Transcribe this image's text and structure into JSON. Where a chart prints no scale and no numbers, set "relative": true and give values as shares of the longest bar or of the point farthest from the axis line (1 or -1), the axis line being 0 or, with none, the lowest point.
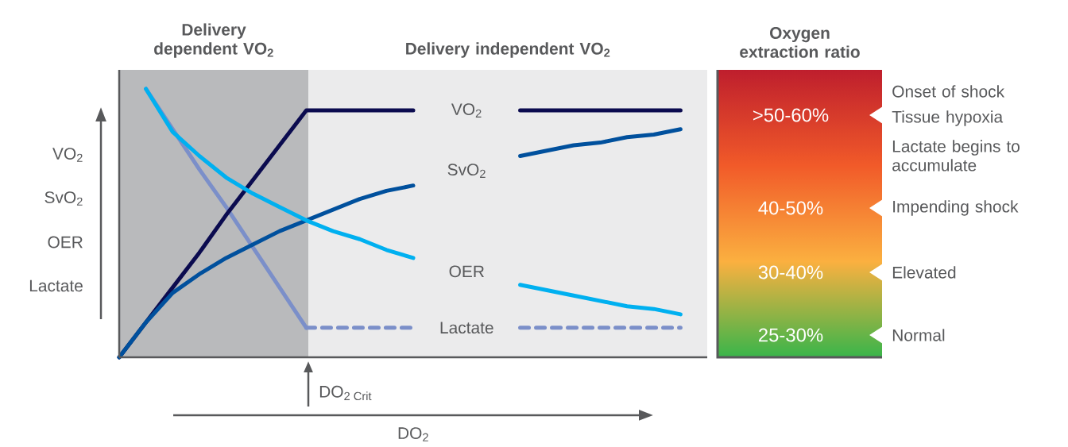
{
  "chart_data": [
    {
      "type": "line",
      "relative": true,
      "categories": [
        null,
        null,
        null,
        null,
        null,
        null,
        null,
        null,
        null,
        null,
        null,
        null,
        null,
        null,
        null,
        null,
        null,
        null,
        null,
        null,
        null,
        null,
        null
      ],
      "series": [
        {
          "color": "#7b8fc9",
          "values": [
            null,
            1.0,
            0.85,
            0.7,
            0.56,
            0.41,
            0.26,
            0.11,
            null,
            null,
            null,
            null,
            null,
            null,
            null,
            null,
            null,
            null,
            null,
            null,
            null,
            null,
            null
          ]
        },
        {
          "name": "Lactate",
          "color": "#7b8fc9",
          "line_style": "dashed",
          "values": [
            null,
            null,
            null,
            null,
            null,
            null,
            null,
            0.11,
            0.11,
            0.11,
            0.11,
            0.11,
            null,
            null,
            null,
            0.11,
            0.11,
            0.11,
            0.11,
            0.11,
            0.11,
            0.11,
            null
          ]
        },
        {
          "name": "VO$_{2}$",
          "color": "#0b0b4f",
          "values": [
            0,
            0.13,
            0.26,
            0.39,
            0.53,
            0.66,
            0.79,
            0.92,
            0.92,
            0.92,
            0.92,
            0.92,
            null,
            null,
            null,
            0.92,
            0.92,
            0.92,
            0.92,
            0.92,
            0.92,
            0.92,
            null
          ]
        },
        {
          "name": "SvO$_{2}$",
          "color": "#00509d",
          "values": [
            0,
            0.13,
            0.24,
            0.31,
            0.37,
            0.42,
            0.47,
            0.51,
            0.55,
            0.59,
            0.62,
            0.64,
            null,
            null,
            null,
            0.75,
            0.77,
            0.79,
            0.8,
            0.82,
            0.83,
            0.85,
            null
          ]
        },
        {
          "name": "OER",
          "color": "#00b0f0",
          "values": [
            null,
            1.0,
            0.84,
            0.75,
            0.67,
            0.61,
            0.56,
            0.51,
            0.47,
            0.44,
            0.4,
            0.37,
            null,
            null,
            null,
            0.27,
            0.25,
            0.23,
            0.21,
            0.19,
            0.18,
            0.16,
            null
          ]
        }
      ],
      "xlabel": "DO$_{2}$",
      "annotations": [
        "VO$_{2}$",
        "SvO$_{2}$",
        "OER",
        "Lactate",
        "Delivery dependent VO$_{2}$",
        "Delivery independent VO$_{2}$",
        "DO$_{2 Crit}$"
      ]
    },
    {
      "type": "other",
      "title": "Oxygen extraction ratio",
      "categories": [
        ">50-60%",
        "40-50%",
        "30-40%",
        "25-30%"
      ],
      "colors": [
        "#be1e2d",
        "#f15a29",
        "#fbb040",
        "#39b54a"
      ],
      "annotations": [
        "Onset of shock",
        "Tissue hypoxia",
        "Lactate begins to accumulate",
        "Impending shock",
        "Elevated",
        "Normal"
      ]
    }
  ]
}
